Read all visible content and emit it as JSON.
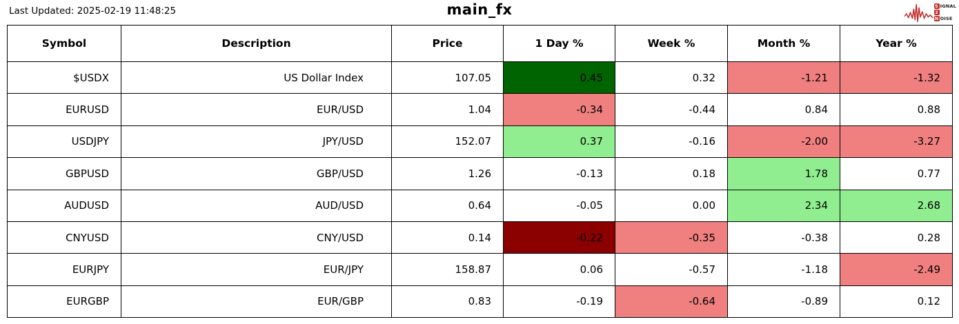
{
  "header": {
    "last_updated": "Last Updated: 2025-02-19 11:48:25",
    "title": "main_fx"
  },
  "logo": {
    "line1_initial": "S",
    "line1_rest": "IGNAL",
    "line2_initial": "2",
    "line3_initial": "N",
    "line3_rest": "OISE"
  },
  "colors": {
    "strong_green": "#006400",
    "light_green": "#90ee90",
    "light_red": "#f08080",
    "strong_red": "#8b0000",
    "logo_red": "#c22a27",
    "border": "#000000"
  },
  "chart_data": {
    "type": "table",
    "title": "main_fx",
    "columns": [
      "Symbol",
      "Description",
      "Price",
      "1 Day %",
      "Week %",
      "Month %",
      "Year %"
    ],
    "rows": [
      {
        "symbol": "$USDX",
        "description": "US Dollar Index",
        "price": "107.05",
        "day": "0.45",
        "week": "0.32",
        "month": "-1.21",
        "year": "-1.32",
        "bg": {
          "day": "strong_green",
          "month": "light_red",
          "year": "light_red"
        }
      },
      {
        "symbol": "EURUSD",
        "description": "EUR/USD",
        "price": "1.04",
        "day": "-0.34",
        "week": "-0.44",
        "month": "0.84",
        "year": "0.88",
        "bg": {
          "day": "light_red"
        }
      },
      {
        "symbol": "USDJPY",
        "description": "JPY/USD",
        "price": "152.07",
        "day": "0.37",
        "week": "-0.16",
        "month": "-2.00",
        "year": "-3.27",
        "bg": {
          "day": "light_green",
          "month": "light_red",
          "year": "light_red"
        }
      },
      {
        "symbol": "GBPUSD",
        "description": "GBP/USD",
        "price": "1.26",
        "day": "-0.13",
        "week": "0.18",
        "month": "1.78",
        "year": "0.77",
        "bg": {
          "month": "light_green"
        }
      },
      {
        "symbol": "AUDUSD",
        "description": "AUD/USD",
        "price": "0.64",
        "day": "-0.05",
        "week": "0.00",
        "month": "2.34",
        "year": "2.68",
        "bg": {
          "month": "light_green",
          "year": "light_green"
        }
      },
      {
        "symbol": "CNYUSD",
        "description": "CNY/USD",
        "price": "0.14",
        "day": "-0.22",
        "week": "-0.35",
        "month": "-0.38",
        "year": "0.28",
        "bg": {
          "day": "strong_red",
          "week": "light_red"
        }
      },
      {
        "symbol": "EURJPY",
        "description": "EUR/JPY",
        "price": "158.87",
        "day": "0.06",
        "week": "-0.57",
        "month": "-1.18",
        "year": "-2.49",
        "bg": {
          "year": "light_red"
        }
      },
      {
        "symbol": "EURGBP",
        "description": "EUR/GBP",
        "price": "0.83",
        "day": "-0.19",
        "week": "-0.64",
        "month": "-0.89",
        "year": "0.12",
        "bg": {
          "week": "light_red"
        }
      }
    ]
  }
}
